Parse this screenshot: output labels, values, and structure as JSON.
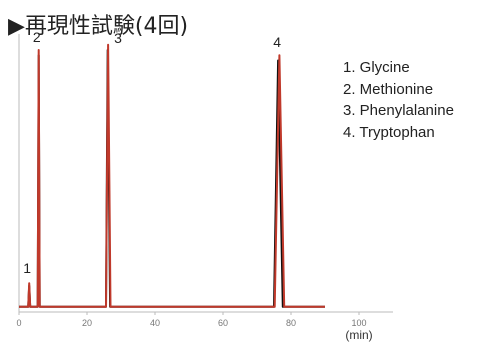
{
  "chart_data": {
    "type": "line",
    "title": "▶再現性試験(4回)",
    "xlabel": "(min)",
    "ylabel": "",
    "xlim": [
      0,
      110
    ],
    "ylim": [
      0,
      100
    ],
    "x_ticks": [
      0,
      20,
      40,
      60,
      80,
      100
    ],
    "grid": false,
    "legend_position": "top-right",
    "legend": [
      "1. Glycine",
      "2. Methionine",
      "3. Phenylalanine",
      "4. Tryptophan"
    ],
    "peaks": [
      {
        "label": "1",
        "retention_min": 3.0,
        "height": 11
      },
      {
        "label": "2",
        "retention_min": 5.8,
        "height": 100
      },
      {
        "label": "3",
        "retention_min": 26.2,
        "height": 102
      },
      {
        "label": "4",
        "retention_min": 76.5,
        "height": 98
      }
    ],
    "series": [
      {
        "color": "#c0392b",
        "points": [
          [
            0,
            2
          ],
          [
            2.7,
            2
          ],
          [
            3.0,
            11
          ],
          [
            3.3,
            2
          ],
          [
            5.5,
            2
          ],
          [
            5.8,
            100
          ],
          [
            6.1,
            2
          ],
          [
            25.6,
            2
          ],
          [
            26.2,
            102
          ],
          [
            26.9,
            2
          ],
          [
            75.2,
            2
          ],
          [
            76.6,
            98
          ],
          [
            78.0,
            2
          ],
          [
            90,
            2
          ]
        ]
      },
      {
        "color": "#111111",
        "points": [
          [
            0,
            2
          ],
          [
            2.7,
            2
          ],
          [
            3.0,
            10
          ],
          [
            3.3,
            2
          ],
          [
            5.5,
            2
          ],
          [
            5.8,
            98
          ],
          [
            6.1,
            2
          ],
          [
            25.6,
            2
          ],
          [
            26.1,
            100
          ],
          [
            26.8,
            2
          ],
          [
            75.0,
            2
          ],
          [
            76.2,
            96
          ],
          [
            77.6,
            2
          ],
          [
            90,
            2
          ]
        ]
      }
    ]
  }
}
